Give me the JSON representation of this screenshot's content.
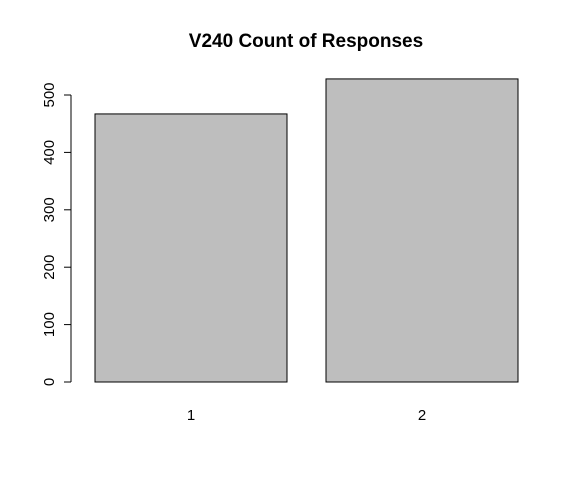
{
  "chart_data": {
    "type": "bar",
    "title": "V240 Count of Responses",
    "categories": [
      "1",
      "2"
    ],
    "values": [
      467,
      528
    ],
    "xlabel": "",
    "ylabel": "",
    "ylim": [
      0,
      500
    ],
    "yticks": [
      0,
      100,
      200,
      300,
      400,
      500
    ],
    "grid": false,
    "bar_color": "#bebebe",
    "border_color": "#000000"
  }
}
